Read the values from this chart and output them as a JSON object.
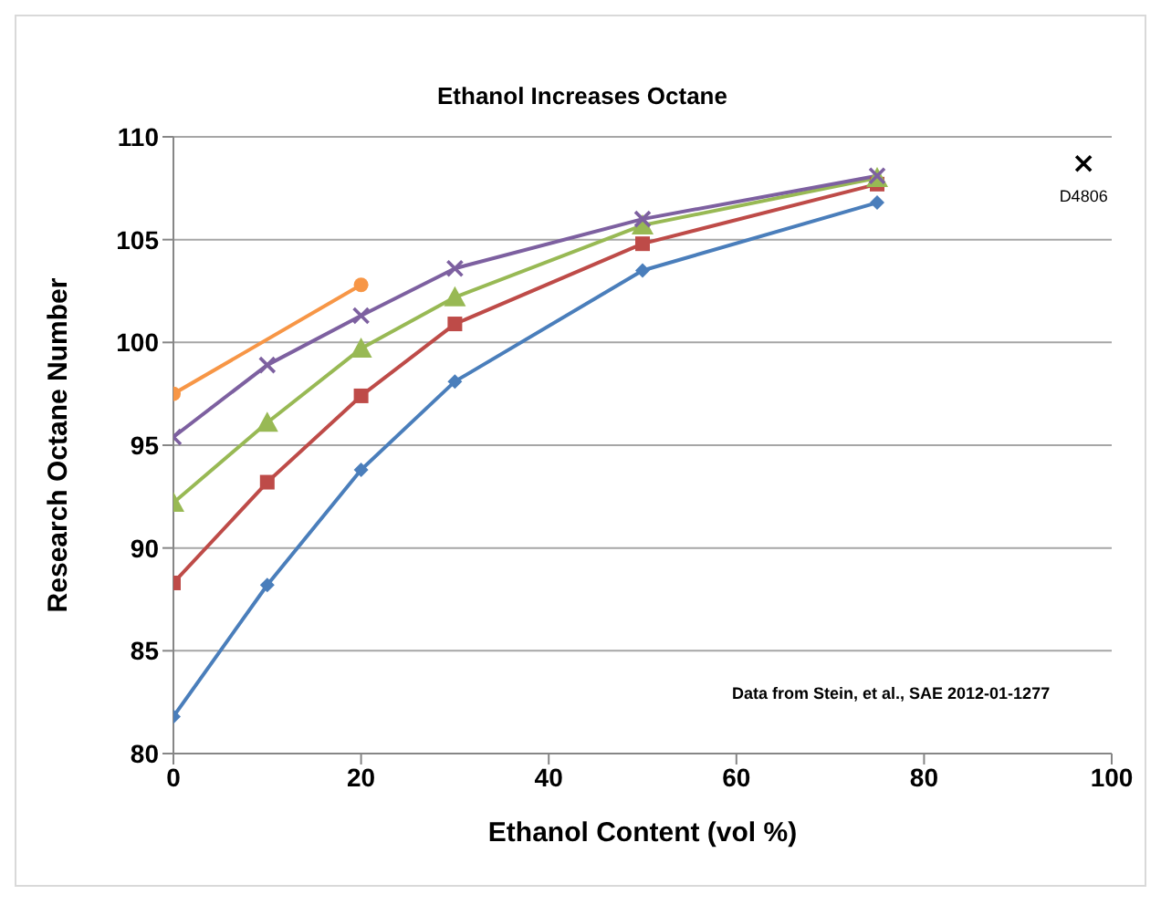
{
  "chart_data": {
    "type": "line",
    "title": "Ethanol Increases Octane",
    "xlabel": "Ethanol Content (vol %)",
    "ylabel": "Research Octane Number",
    "x": [
      0,
      10,
      20,
      30,
      50,
      75
    ],
    "series": [
      {
        "color": "#4a7ebb",
        "marker": "diamond",
        "values": [
          81.8,
          88.2,
          93.8,
          98.1,
          103.5,
          106.8
        ]
      },
      {
        "color": "#be4b48",
        "marker": "square",
        "values": [
          88.3,
          93.2,
          97.4,
          100.9,
          104.8,
          107.7
        ]
      },
      {
        "color": "#98b954",
        "marker": "triangle",
        "values": [
          92.2,
          96.1,
          99.7,
          102.2,
          105.7,
          108.0
        ]
      },
      {
        "color": "#7d60a0",
        "marker": "cross",
        "values": [
          95.4,
          98.9,
          101.3,
          103.6,
          106.0,
          108.1
        ]
      },
      {
        "color": "#f79646",
        "marker": "circle",
        "x": [
          0,
          20
        ],
        "values": [
          97.5,
          102.8
        ]
      },
      {
        "type": "scatter",
        "name": "D4806",
        "color": "#000000",
        "marker": "cross",
        "x": [
          97
        ],
        "values": [
          108.7
        ]
      }
    ],
    "xlim": [
      0,
      100
    ],
    "xticks": [
      0,
      20,
      40,
      60,
      80,
      100
    ],
    "ylim": [
      80,
      110
    ],
    "yticks": [
      80,
      85,
      90,
      95,
      100,
      105,
      110
    ],
    "grid": "y",
    "legend": false,
    "line_style": "solid",
    "annotations": [
      "Data from Stein, et al.,  SAE 2012-01-1277"
    ]
  }
}
